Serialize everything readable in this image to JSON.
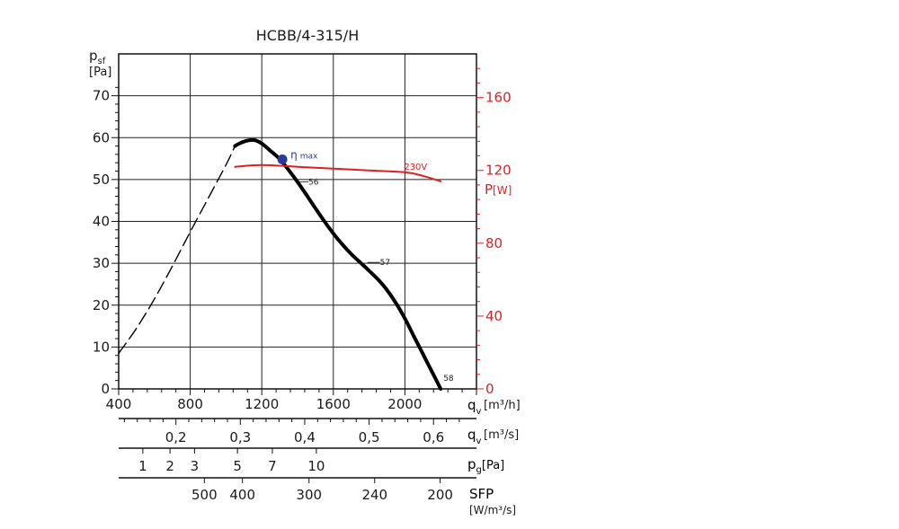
{
  "chart_data": {
    "type": "line",
    "title": "HCBB/4-315/H",
    "x_axis": {
      "label_main": "q",
      "label_sub": "v",
      "unit": "[m³/h]",
      "range": [
        400,
        2400
      ],
      "ticks": [
        400,
        800,
        1200,
        1600,
        2000
      ],
      "tick_labels": [
        "400",
        "800",
        "1200",
        "1600",
        "2000"
      ]
    },
    "y_axis": {
      "label_main": "p",
      "label_sub": "sf",
      "unit": "[Pa]",
      "range": [
        0,
        80
      ],
      "ticks": [
        0,
        10,
        20,
        30,
        40,
        50,
        60,
        70
      ],
      "tick_labels": [
        "0",
        "10",
        "20",
        "30",
        "40",
        "50",
        "60",
        "70"
      ]
    },
    "y2_axis": {
      "label": "P",
      "unit": "[W]",
      "color": "#e02020",
      "range": [
        0,
        184
      ],
      "ticks": [
        0,
        40,
        80,
        120,
        160
      ],
      "tick_labels": [
        "0",
        "40",
        "80",
        "120",
        "160"
      ]
    },
    "secondary_x_axes": [
      {
        "label_main": "q",
        "label_sub": "v",
        "unit": "[m³/s]",
        "ticks": [
          0.2,
          0.3,
          0.4,
          0.5,
          0.6
        ],
        "tick_labels": [
          "0,2",
          "0,3",
          "0,4",
          "0,5",
          "0,6"
        ]
      },
      {
        "label_main": "p",
        "label_sub": "g",
        "unit": "[Pa]",
        "ticks": [
          1,
          2,
          3,
          5,
          7,
          10
        ],
        "tick_labels": [
          "1",
          "2",
          "3",
          "5",
          "7",
          "10"
        ],
        "positions_m3h": [
          535,
          687,
          824,
          1064,
          1259,
          1505
        ]
      },
      {
        "label": "SFP",
        "unit": "[W/m³/s]",
        "ticks": [
          500,
          400,
          300,
          240,
          200
        ],
        "tick_labels": [
          "500",
          "400",
          "300",
          "240",
          "200"
        ],
        "positions_m3h": [
          879,
          1092,
          1464,
          1831,
          2197
        ]
      }
    ],
    "series": [
      {
        "color": "#000000",
        "x": [
          1050,
          1080,
          1120,
          1160,
          1200,
          1250,
          1300,
          1350,
          1400,
          1450,
          1500,
          1550,
          1600,
          1650,
          1700,
          1750,
          1800,
          1850,
          1900,
          1950,
          2000,
          2050,
          2100,
          2150,
          2200
        ],
        "y": [
          58,
          58.7,
          59.3,
          59.4,
          58.6,
          56.8,
          54.9,
          52.3,
          49.4,
          46.3,
          43.1,
          40,
          37.1,
          34.5,
          32.2,
          30.2,
          28.2,
          26.1,
          23.6,
          20.5,
          16.8,
          12.6,
          8.4,
          4.2,
          0
        ]
      },
      {
        "style": "dashed",
        "color": "#000000",
        "x": [
          400,
          500,
          600,
          700,
          800,
          900,
          1000,
          1050
        ],
        "y": [
          8.5,
          14.5,
          21.5,
          29.3,
          37.5,
          45.5,
          53.5,
          58
        ]
      },
      {
        "name": "230V",
        "color": "#e02020",
        "axis": "y2",
        "x": [
          1050,
          1200,
          1400,
          1600,
          1800,
          2000,
          2100,
          2200
        ],
        "y": [
          122,
          123,
          122,
          121,
          120,
          119,
          117,
          114
        ]
      }
    ],
    "annotations": [
      {
        "text": "η",
        "sub": "max",
        "x": 1315,
        "y": 54.8,
        "marker": "circle",
        "color": "#2b3a9a"
      },
      {
        "text": "56",
        "x": 1400,
        "y": 49.4
      },
      {
        "text": "57",
        "x": 1800,
        "y": 30.2
      },
      {
        "text": "58",
        "x": 2200,
        "y": 0
      }
    ],
    "grid": true,
    "legend": "none"
  }
}
